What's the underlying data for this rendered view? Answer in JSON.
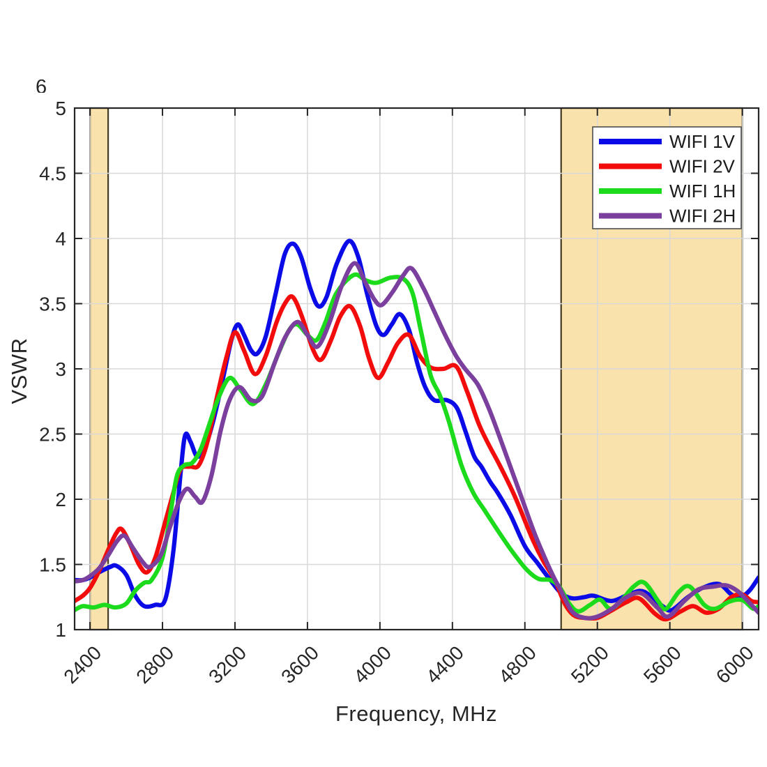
{
  "figure": {
    "ylabel": "VSWR",
    "xlabel": "Frequency, MHz",
    "clipped_top_tick": "6"
  },
  "chart_data": {
    "type": "line",
    "title": "",
    "xlabel": "Frequency, MHz",
    "ylabel": "VSWR",
    "xlim": [
      2315,
      6090
    ],
    "ylim": [
      1,
      5
    ],
    "x_ticks": [
      2400,
      2800,
      3200,
      3600,
      4000,
      4400,
      4800,
      5200,
      5600,
      6000
    ],
    "y_ticks": [
      1,
      1.5,
      2,
      2.5,
      3,
      3.5,
      4,
      4.5,
      5
    ],
    "grid": true,
    "legend_position": "top-right",
    "colors": {
      "grid": "#d8d8d8",
      "axis": "#262626",
      "tick_text": "#262626",
      "band_fill": "#fae2ac",
      "band_edge": "#453a22",
      "legend_border": "#4d4d4d",
      "legend_bg": "#ffffff"
    },
    "highlight_bands": [
      {
        "name": "wifi-2.4ghz-band",
        "x0": 2400,
        "x1": 2500
      },
      {
        "name": "wifi-5ghz-band",
        "x0": 5000,
        "x1": 6000
      }
    ],
    "series": [
      {
        "name": "WIFI 1V",
        "color": "#0b0be8",
        "points": [
          [
            2315,
            1.38
          ],
          [
            2360,
            1.38
          ],
          [
            2400,
            1.4
          ],
          [
            2450,
            1.44
          ],
          [
            2510,
            1.48
          ],
          [
            2545,
            1.49
          ],
          [
            2600,
            1.42
          ],
          [
            2650,
            1.26
          ],
          [
            2700,
            1.18
          ],
          [
            2760,
            1.19
          ],
          [
            2815,
            1.23
          ],
          [
            2860,
            1.6
          ],
          [
            2900,
            2.2
          ],
          [
            2925,
            2.49
          ],
          [
            2955,
            2.44
          ],
          [
            2990,
            2.33
          ],
          [
            3030,
            2.38
          ],
          [
            3080,
            2.6
          ],
          [
            3130,
            2.9
          ],
          [
            3180,
            3.22
          ],
          [
            3215,
            3.34
          ],
          [
            3250,
            3.26
          ],
          [
            3290,
            3.14
          ],
          [
            3325,
            3.12
          ],
          [
            3370,
            3.25
          ],
          [
            3425,
            3.58
          ],
          [
            3475,
            3.88
          ],
          [
            3520,
            3.96
          ],
          [
            3565,
            3.86
          ],
          [
            3615,
            3.62
          ],
          [
            3660,
            3.48
          ],
          [
            3705,
            3.55
          ],
          [
            3760,
            3.8
          ],
          [
            3828,
            3.98
          ],
          [
            3880,
            3.86
          ],
          [
            3930,
            3.57
          ],
          [
            3980,
            3.33
          ],
          [
            4020,
            3.26
          ],
          [
            4065,
            3.34
          ],
          [
            4110,
            3.42
          ],
          [
            4160,
            3.3
          ],
          [
            4205,
            3.05
          ],
          [
            4250,
            2.86
          ],
          [
            4300,
            2.76
          ],
          [
            4370,
            2.76
          ],
          [
            4425,
            2.7
          ],
          [
            4470,
            2.53
          ],
          [
            4520,
            2.33
          ],
          [
            4560,
            2.25
          ],
          [
            4610,
            2.13
          ],
          [
            4650,
            2.05
          ],
          [
            4720,
            1.88
          ],
          [
            4800,
            1.64
          ],
          [
            4870,
            1.51
          ],
          [
            4935,
            1.39
          ],
          [
            5000,
            1.28
          ],
          [
            5060,
            1.24
          ],
          [
            5130,
            1.25
          ],
          [
            5180,
            1.26
          ],
          [
            5280,
            1.22
          ],
          [
            5390,
            1.28
          ],
          [
            5460,
            1.29
          ],
          [
            5560,
            1.18
          ],
          [
            5610,
            1.15
          ],
          [
            5700,
            1.25
          ],
          [
            5780,
            1.32
          ],
          [
            5870,
            1.35
          ],
          [
            5940,
            1.27
          ],
          [
            5990,
            1.25
          ],
          [
            6040,
            1.3
          ],
          [
            6090,
            1.4
          ]
        ]
      },
      {
        "name": "WIFI 2V",
        "color": "#f20c0c",
        "points": [
          [
            2315,
            1.22
          ],
          [
            2360,
            1.26
          ],
          [
            2400,
            1.32
          ],
          [
            2450,
            1.45
          ],
          [
            2500,
            1.61
          ],
          [
            2545,
            1.74
          ],
          [
            2575,
            1.77
          ],
          [
            2620,
            1.66
          ],
          [
            2670,
            1.5
          ],
          [
            2715,
            1.44
          ],
          [
            2760,
            1.55
          ],
          [
            2810,
            1.8
          ],
          [
            2860,
            2.05
          ],
          [
            2900,
            2.23
          ],
          [
            2950,
            2.25
          ],
          [
            3000,
            2.26
          ],
          [
            3050,
            2.45
          ],
          [
            3100,
            2.78
          ],
          [
            3155,
            3.1
          ],
          [
            3200,
            3.28
          ],
          [
            3250,
            3.14
          ],
          [
            3310,
            2.96
          ],
          [
            3370,
            3.1
          ],
          [
            3430,
            3.36
          ],
          [
            3480,
            3.51
          ],
          [
            3520,
            3.55
          ],
          [
            3570,
            3.4
          ],
          [
            3630,
            3.15
          ],
          [
            3675,
            3.07
          ],
          [
            3730,
            3.22
          ],
          [
            3780,
            3.4
          ],
          [
            3835,
            3.48
          ],
          [
            3890,
            3.33
          ],
          [
            3940,
            3.08
          ],
          [
            3990,
            2.93
          ],
          [
            4045,
            3.05
          ],
          [
            4100,
            3.2
          ],
          [
            4160,
            3.26
          ],
          [
            4220,
            3.1
          ],
          [
            4280,
            3.01
          ],
          [
            4350,
            3.0
          ],
          [
            4420,
            3.02
          ],
          [
            4480,
            2.83
          ],
          [
            4545,
            2.58
          ],
          [
            4600,
            2.42
          ],
          [
            4665,
            2.25
          ],
          [
            4745,
            2.02
          ],
          [
            4840,
            1.7
          ],
          [
            4900,
            1.53
          ],
          [
            4965,
            1.38
          ],
          [
            5020,
            1.2
          ],
          [
            5070,
            1.11
          ],
          [
            5130,
            1.09
          ],
          [
            5200,
            1.09
          ],
          [
            5270,
            1.14
          ],
          [
            5360,
            1.21
          ],
          [
            5430,
            1.24
          ],
          [
            5520,
            1.12
          ],
          [
            5580,
            1.08
          ],
          [
            5660,
            1.14
          ],
          [
            5730,
            1.18
          ],
          [
            5800,
            1.13
          ],
          [
            5870,
            1.16
          ],
          [
            5940,
            1.25
          ],
          [
            6000,
            1.27
          ],
          [
            6050,
            1.22
          ],
          [
            6090,
            1.21
          ]
        ]
      },
      {
        "name": "WIFI 1H",
        "color": "#1cdb1c",
        "points": [
          [
            2315,
            1.15
          ],
          [
            2360,
            1.18
          ],
          [
            2420,
            1.17
          ],
          [
            2480,
            1.19
          ],
          [
            2540,
            1.17
          ],
          [
            2600,
            1.2
          ],
          [
            2650,
            1.3
          ],
          [
            2700,
            1.36
          ],
          [
            2740,
            1.38
          ],
          [
            2800,
            1.55
          ],
          [
            2845,
            1.9
          ],
          [
            2880,
            2.18
          ],
          [
            2920,
            2.26
          ],
          [
            2965,
            2.28
          ],
          [
            3010,
            2.38
          ],
          [
            3060,
            2.58
          ],
          [
            3110,
            2.78
          ],
          [
            3170,
            2.93
          ],
          [
            3230,
            2.84
          ],
          [
            3300,
            2.73
          ],
          [
            3370,
            2.88
          ],
          [
            3440,
            3.12
          ],
          [
            3500,
            3.3
          ],
          [
            3545,
            3.34
          ],
          [
            3600,
            3.26
          ],
          [
            3650,
            3.22
          ],
          [
            3700,
            3.36
          ],
          [
            3760,
            3.58
          ],
          [
            3855,
            3.72
          ],
          [
            3920,
            3.68
          ],
          [
            3980,
            3.66
          ],
          [
            4060,
            3.7
          ],
          [
            4130,
            3.69
          ],
          [
            4180,
            3.58
          ],
          [
            4225,
            3.3
          ],
          [
            4280,
            2.95
          ],
          [
            4330,
            2.8
          ],
          [
            4380,
            2.6
          ],
          [
            4450,
            2.26
          ],
          [
            4515,
            2.05
          ],
          [
            4580,
            1.91
          ],
          [
            4665,
            1.73
          ],
          [
            4735,
            1.59
          ],
          [
            4810,
            1.46
          ],
          [
            4875,
            1.39
          ],
          [
            4940,
            1.38
          ],
          [
            4990,
            1.33
          ],
          [
            5045,
            1.2
          ],
          [
            5095,
            1.14
          ],
          [
            5160,
            1.19
          ],
          [
            5215,
            1.23
          ],
          [
            5270,
            1.16
          ],
          [
            5330,
            1.22
          ],
          [
            5400,
            1.33
          ],
          [
            5460,
            1.36
          ],
          [
            5540,
            1.21
          ],
          [
            5580,
            1.16
          ],
          [
            5650,
            1.29
          ],
          [
            5710,
            1.33
          ],
          [
            5790,
            1.19
          ],
          [
            5850,
            1.16
          ],
          [
            5920,
            1.21
          ],
          [
            5970,
            1.23
          ],
          [
            6010,
            1.22
          ],
          [
            6060,
            1.16
          ],
          [
            6090,
            1.18
          ]
        ]
      },
      {
        "name": "WIFI 2H",
        "color": "#7b3f9d",
        "points": [
          [
            2315,
            1.37
          ],
          [
            2360,
            1.38
          ],
          [
            2400,
            1.41
          ],
          [
            2450,
            1.47
          ],
          [
            2500,
            1.57
          ],
          [
            2550,
            1.68
          ],
          [
            2590,
            1.72
          ],
          [
            2640,
            1.62
          ],
          [
            2690,
            1.52
          ],
          [
            2730,
            1.48
          ],
          [
            2790,
            1.57
          ],
          [
            2840,
            1.78
          ],
          [
            2890,
            1.98
          ],
          [
            2935,
            2.08
          ],
          [
            2980,
            2.02
          ],
          [
            3020,
            1.98
          ],
          [
            3070,
            2.18
          ],
          [
            3120,
            2.52
          ],
          [
            3170,
            2.76
          ],
          [
            3225,
            2.86
          ],
          [
            3290,
            2.76
          ],
          [
            3350,
            2.79
          ],
          [
            3420,
            3.05
          ],
          [
            3480,
            3.25
          ],
          [
            3545,
            3.36
          ],
          [
            3600,
            3.26
          ],
          [
            3655,
            3.17
          ],
          [
            3720,
            3.35
          ],
          [
            3790,
            3.64
          ],
          [
            3860,
            3.81
          ],
          [
            3920,
            3.66
          ],
          [
            3970,
            3.53
          ],
          [
            4010,
            3.49
          ],
          [
            4070,
            3.59
          ],
          [
            4130,
            3.72
          ],
          [
            4175,
            3.77
          ],
          [
            4240,
            3.62
          ],
          [
            4300,
            3.44
          ],
          [
            4360,
            3.26
          ],
          [
            4420,
            3.1
          ],
          [
            4470,
            3.0
          ],
          [
            4540,
            2.88
          ],
          [
            4600,
            2.7
          ],
          [
            4660,
            2.48
          ],
          [
            4720,
            2.25
          ],
          [
            4780,
            2.02
          ],
          [
            4850,
            1.75
          ],
          [
            4910,
            1.55
          ],
          [
            4960,
            1.4
          ],
          [
            4995,
            1.31
          ],
          [
            5060,
            1.14
          ],
          [
            5130,
            1.09
          ],
          [
            5200,
            1.1
          ],
          [
            5280,
            1.16
          ],
          [
            5350,
            1.24
          ],
          [
            5440,
            1.28
          ],
          [
            5530,
            1.17
          ],
          [
            5590,
            1.1
          ],
          [
            5680,
            1.22
          ],
          [
            5760,
            1.31
          ],
          [
            5840,
            1.33
          ],
          [
            5910,
            1.34
          ],
          [
            5970,
            1.3
          ],
          [
            6030,
            1.22
          ],
          [
            6090,
            1.13
          ]
        ]
      }
    ]
  }
}
